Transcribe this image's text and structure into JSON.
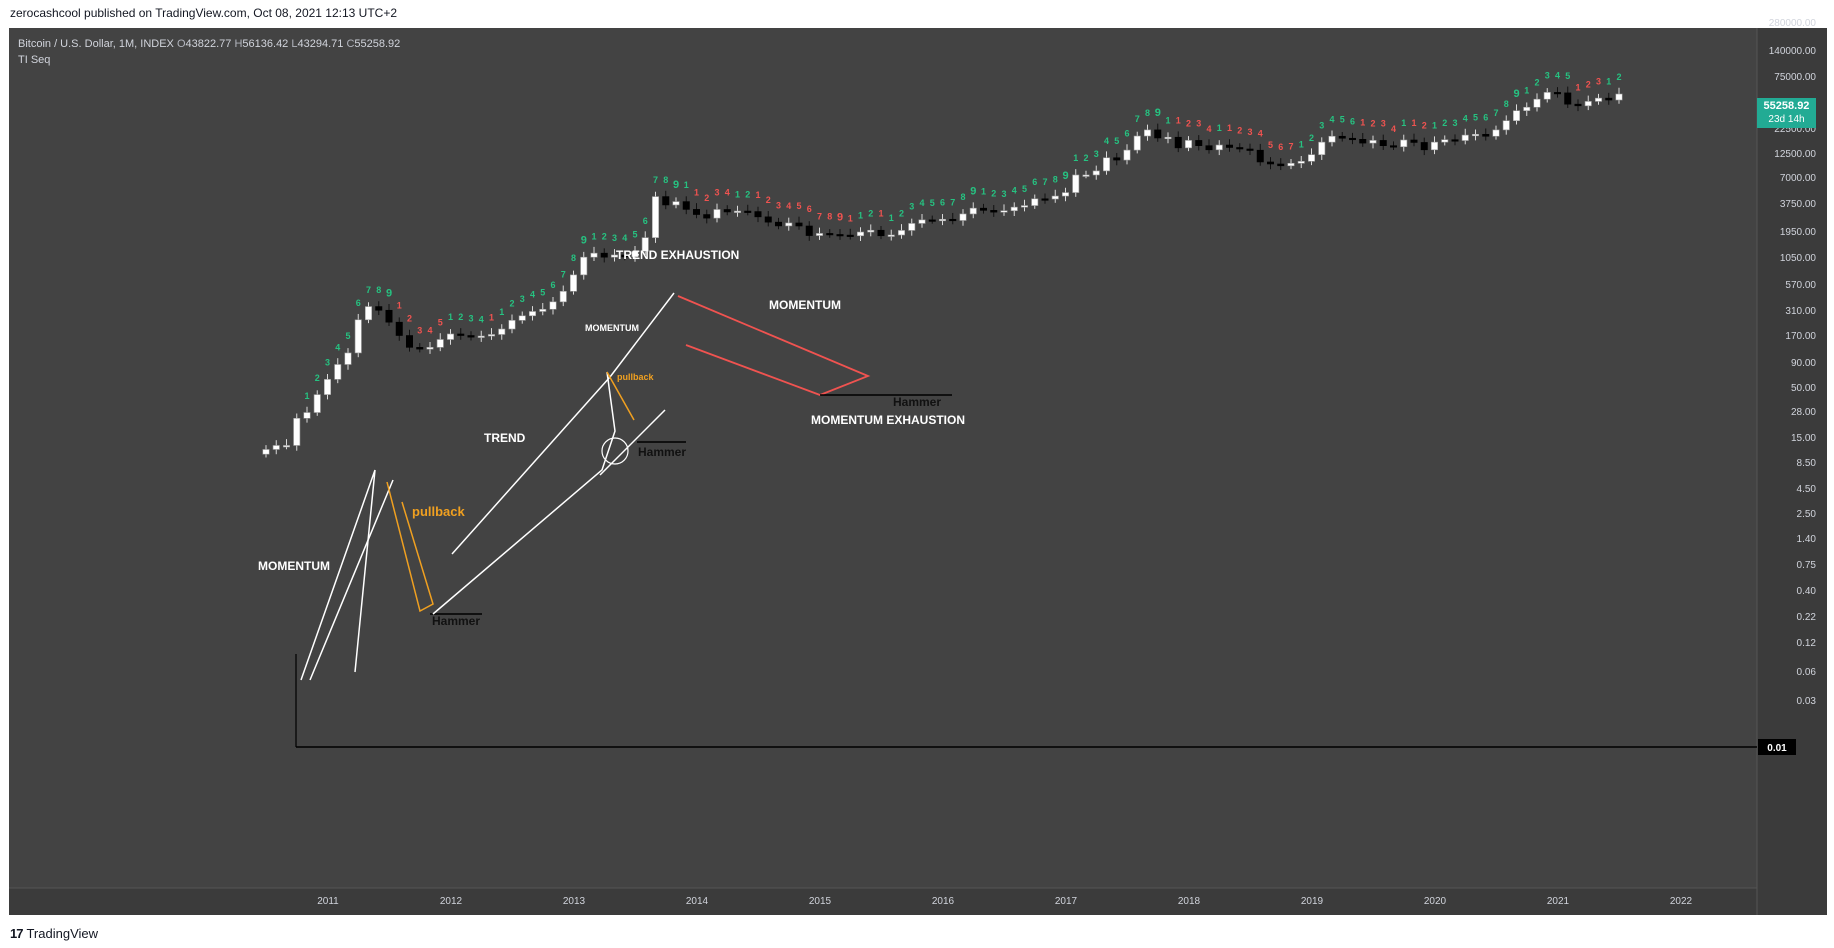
{
  "header": {
    "publish_line": "zerocashcool published on TradingView.com, Oct 08, 2021 12:13 UTC+2"
  },
  "legend": {
    "symbol": "Bitcoin / U.S. Dollar, 1M, INDEX",
    "open_label": "O",
    "open": "43822.77",
    "high_label": "H",
    "high": "56136.42",
    "low_label": "L",
    "low": "43294.71",
    "close_label": "C",
    "close": "55258.92",
    "indicator": "TI Seq"
  },
  "last_price": {
    "price": "55258.92",
    "countdown": "23d 14h"
  },
  "footer": {
    "brand": "TradingView",
    "logo": "tradingview-logo-icon"
  },
  "colors": {
    "background": "#434343",
    "axis_background": "#3b3b3b",
    "up_candle": "#ffffff",
    "down_candle": "#000000",
    "seq_green": "#26c281",
    "seq_red": "#f05350",
    "annotation_white": "#ffffff",
    "annotation_orange": "#f0a020",
    "annotation_red": "#f05350",
    "price_tag": "#22ab94"
  },
  "chart_data": {
    "type": "candlestick",
    "scale": "log",
    "y_ticks": [
      "280000.00",
      "140000.00",
      "75000.00",
      "42500.00",
      "22500.00",
      "12500.00",
      "7000.00",
      "3750.00",
      "1950.00",
      "1050.00",
      "570.00",
      "310.00",
      "170.00",
      "90.00",
      "50.00",
      "28.00",
      "15.00",
      "8.50",
      "4.50",
      "2.50",
      "1.40",
      "0.75",
      "0.40",
      "0.22",
      "0.12",
      "0.06",
      "0.03",
      "0.01"
    ],
    "x_ticks": [
      "2011",
      "2012",
      "2013",
      "2014",
      "2015",
      "2016",
      "2017",
      "2018",
      "2019",
      "2020",
      "2021",
      "2022"
    ],
    "bottom_label": "0.01",
    "series_close": [
      0.06,
      0.07,
      0.07,
      0.2,
      0.25,
      0.5,
      0.9,
      1.6,
      2.5,
      9.0,
      15.0,
      13.0,
      8.2,
      4.9,
      3.1,
      2.9,
      3.1,
      4.2,
      5.2,
      4.9,
      4.6,
      4.8,
      5.1,
      6.3,
      8.8,
      10.5,
      12.4,
      13.5,
      18.0,
      27.0,
      51.0,
      101.0,
      118.0,
      101.0,
      110.0,
      102.0,
      127.0,
      215.0,
      1050.0,
      760.0,
      865.0,
      640.0,
      525.0,
      457.0,
      638.0,
      580.0,
      600.0,
      589.0,
      480.0,
      391.0,
      338.0,
      379.0,
      337.0,
      233.0,
      253.0,
      243.0,
      237.0,
      231.0,
      267.0,
      286.0,
      231.0,
      238.0,
      284.0,
      372.0,
      427.0,
      419.0,
      437.0,
      417.0,
      537.0,
      671.0,
      617.0,
      576.0,
      608.0,
      698.0,
      742.0,
      964.0,
      956.0,
      1072.0,
      1226.0,
      2420.0,
      2420.0,
      2831.0,
      4708.0,
      4307.0,
      6331.0,
      10900.0,
      13800.0,
      10100.0,
      10400.0,
      6900.0,
      9200.0,
      7500.0,
      6400.0,
      7700.0,
      7000.0,
      6600.0,
      6300.0,
      4000.0,
      3700.0,
      3450.0,
      3800.0,
      4100.0,
      5300.0,
      8600.0,
      10800.0,
      10000.0,
      9600.0,
      8300.0,
      9200.0,
      7500.0,
      7200.0,
      9350.0,
      8500.0,
      6400.0,
      8600.0,
      9450.0,
      9150.0,
      11300.0,
      11650.0,
      10800.0,
      13800.0,
      19700.0,
      29000.0,
      33100.0,
      45200.0,
      58800.0,
      57700.0,
      37300.0,
      35000.0,
      41500.0,
      47100.0,
      43800.0,
      55258.92
    ],
    "annotations": [
      "MOMENTUM",
      "pullback",
      "Hammer",
      "TREND",
      "MOMENTUM",
      "pullback",
      "Hammer",
      "TREND EXHAUSTION",
      "MOMENTUM",
      "Hammer",
      "MOMENTUM EXHAUSTION"
    ]
  }
}
